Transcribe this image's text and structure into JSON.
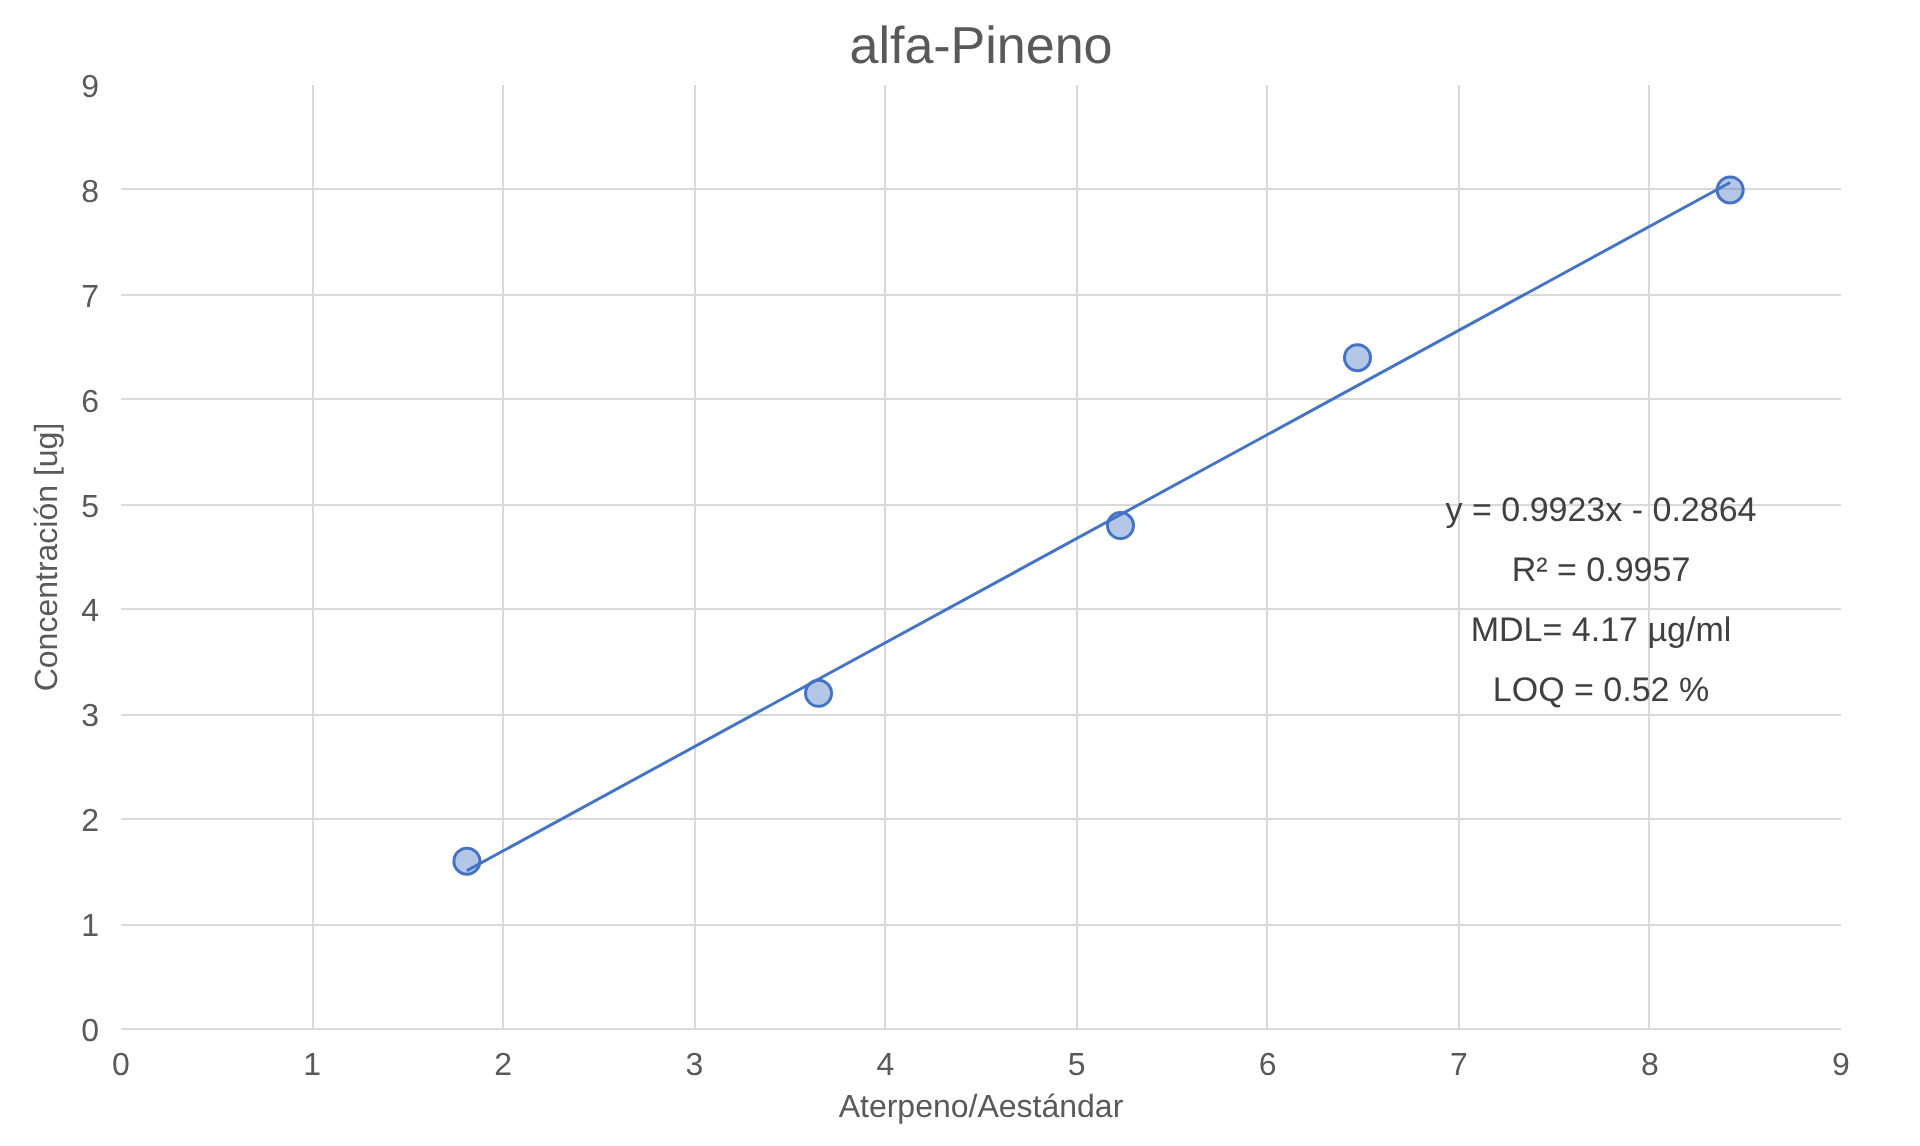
{
  "chart_data": {
    "type": "scatter",
    "title": "alfa-Pineno",
    "xlabel": "Aterpeno/Aestándar",
    "ylabel": "Concentración [ug]",
    "xlim": [
      0,
      9
    ],
    "ylim": [
      0,
      9
    ],
    "xticks": [
      0,
      1,
      2,
      3,
      4,
      5,
      6,
      7,
      8,
      9
    ],
    "yticks": [
      0,
      1,
      2,
      3,
      4,
      5,
      6,
      7,
      8,
      9
    ],
    "grid": true,
    "series": [
      {
        "marker": "circle",
        "color": "#4472c4",
        "x": [
          1.81,
          3.65,
          5.23,
          6.47,
          8.42
        ],
        "values": [
          1.6,
          3.2,
          4.8,
          6.4,
          8.0
        ]
      },
      {
        "type": "line",
        "marker": "none",
        "color": "#4472c4",
        "x": [
          1.81,
          8.42
        ],
        "values": [
          1.51,
          8.07
        ]
      }
    ],
    "annotations": [
      "y = 0.9923x - 0.2864",
      "R² = 0.9957",
      "MDL= 4.17 µg/ml",
      "LOQ = 0.52 %"
    ]
  }
}
